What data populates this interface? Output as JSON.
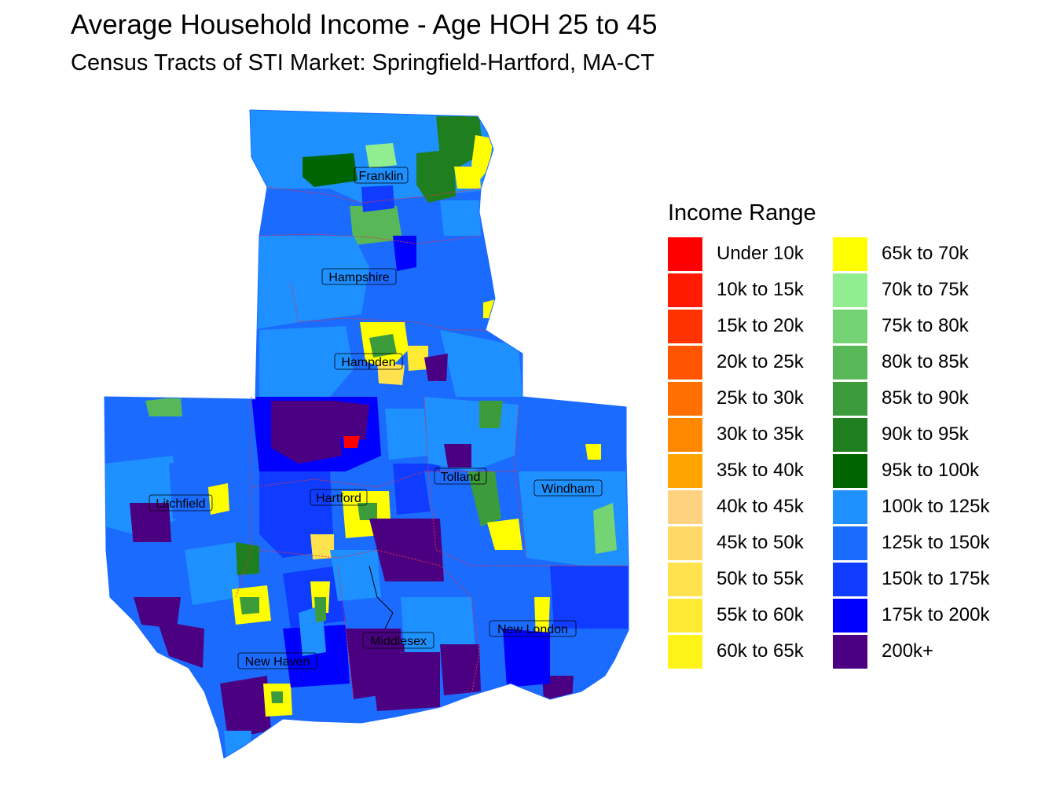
{
  "title": "Average Household Income - Age HOH 25 to 45",
  "subtitle": "Census Tracts of STI Market: Springfield-Hartford, MA-CT",
  "legend": {
    "title": "Income Range",
    "items": [
      {
        "label": "Under 10k",
        "color": "#ff0000"
      },
      {
        "label": "10k to 15k",
        "color": "#ff1a00"
      },
      {
        "label": "15k to 20k",
        "color": "#ff3300"
      },
      {
        "label": "20k to 25k",
        "color": "#ff5500"
      },
      {
        "label": "25k to 30k",
        "color": "#ff7000"
      },
      {
        "label": "30k to 35k",
        "color": "#ff8800"
      },
      {
        "label": "35k to 40k",
        "color": "#ffa500"
      },
      {
        "label": "40k to 45k",
        "color": "#ffd27f"
      },
      {
        "label": "45k to 50k",
        "color": "#ffd966"
      },
      {
        "label": "50k to 55k",
        "color": "#ffe24d"
      },
      {
        "label": "55k to 60k",
        "color": "#ffea33"
      },
      {
        "label": "60k to 65k",
        "color": "#fff31a"
      },
      {
        "label": "65k to 70k",
        "color": "#ffff00"
      },
      {
        "label": "70k to 75k",
        "color": "#90ee90"
      },
      {
        "label": "75k to 80k",
        "color": "#74d474"
      },
      {
        "label": "80k to 85k",
        "color": "#58b858"
      },
      {
        "label": "85k to 90k",
        "color": "#3c9c3c"
      },
      {
        "label": "90k to 95k",
        "color": "#1f7f1f"
      },
      {
        "label": "95k to 100k",
        "color": "#006400"
      },
      {
        "label": "100k to 125k",
        "color": "#1e90ff"
      },
      {
        "label": "125k to 150k",
        "color": "#1c6bff"
      },
      {
        "label": "150k to 175k",
        "color": "#0f3cff"
      },
      {
        "label": "175k to 200k",
        "color": "#0000ff"
      },
      {
        "label": "200k+",
        "color": "#4b0082"
      }
    ]
  },
  "counties": [
    {
      "name": "Franklin"
    },
    {
      "name": "Hampshire"
    },
    {
      "name": "Hampden"
    },
    {
      "name": "Litchfield"
    },
    {
      "name": "Hartford"
    },
    {
      "name": "Tolland"
    },
    {
      "name": "Windham"
    },
    {
      "name": "New London"
    },
    {
      "name": "Middlesex"
    },
    {
      "name": "New Haven"
    }
  ]
}
